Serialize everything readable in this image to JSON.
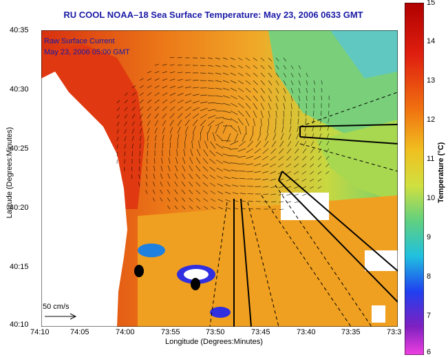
{
  "title": "RU COOL  NOAA–18  Sea Surface Temperature:  May 23, 2006 0633 GMT",
  "annotation": {
    "line1": "Raw Surface Current",
    "line2": "May 23, 2006 05:00 GMT"
  },
  "axes": {
    "ylabel": "Latitude (Degrees:Minutes)",
    "xlabel": "Longitude (Degrees:Minutes)",
    "yticks": [
      "40:35",
      "40:30",
      "40:25",
      "40:20",
      "40:15",
      "40:10"
    ],
    "xticks": [
      "74:10",
      "74:05",
      "74:00",
      "73:55",
      "73:50",
      "73:45",
      "73:40",
      "73:35",
      "73:3"
    ]
  },
  "scale": {
    "label": "50 cm/s"
  },
  "colorbar": {
    "label": "Temperature (°C)",
    "ticks": [
      "15",
      "14",
      "13",
      "12",
      "11",
      "10",
      "9",
      "8",
      "7",
      "6"
    ],
    "range": [
      6,
      15
    ]
  },
  "colors": {
    "title": "#1a1aa6",
    "warm": "#e04010",
    "mid": "#f0a020",
    "cool": "#80d060",
    "cold": "#3030e0"
  }
}
